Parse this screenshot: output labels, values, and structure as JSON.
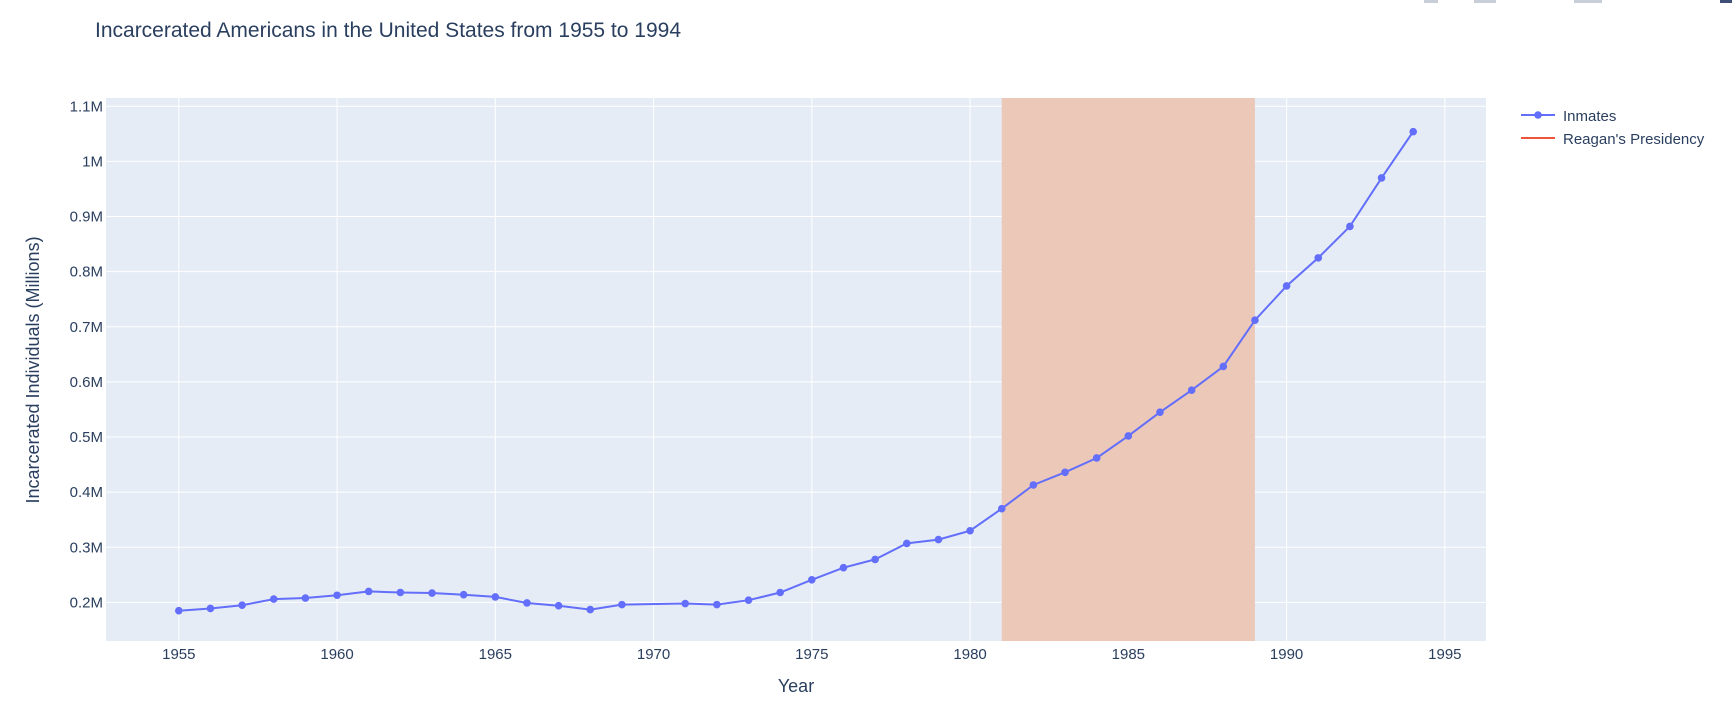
{
  "chart_data": {
    "type": "line",
    "title": "Incarcerated Americans in the United States from 1955 to 1994",
    "xlabel": "Year",
    "ylabel": "Incarcerated Individuals (Millions)",
    "xlim": [
      1952.7,
      1996.3
    ],
    "ylim": [
      0.13,
      1.115
    ],
    "x_ticks": [
      1955,
      1960,
      1965,
      1970,
      1975,
      1980,
      1985,
      1990,
      1995
    ],
    "x_tick_labels": [
      "1955",
      "1960",
      "1965",
      "1970",
      "1975",
      "1980",
      "1985",
      "1990",
      "1995"
    ],
    "y_ticks": [
      0.2,
      0.3,
      0.4,
      0.5,
      0.6,
      0.7,
      0.8,
      0.9,
      1.0,
      1.1
    ],
    "y_tick_labels": [
      "0.2M",
      "0.3M",
      "0.4M",
      "0.5M",
      "0.6M",
      "0.7M",
      "0.8M",
      "0.9M",
      "1M",
      "1.1M"
    ],
    "grid": true,
    "legend_position": "top-right",
    "series": [
      {
        "name": "Inmates",
        "color": "#636efa",
        "mode": "lines+markers",
        "x": [
          1955,
          1956,
          1957,
          1958,
          1959,
          1960,
          1961,
          1962,
          1963,
          1964,
          1965,
          1966,
          1967,
          1968,
          1969,
          1971,
          1972,
          1973,
          1974,
          1975,
          1976,
          1977,
          1978,
          1979,
          1980,
          1981,
          1982,
          1983,
          1984,
          1985,
          1986,
          1987,
          1988,
          1989,
          1990,
          1991,
          1992,
          1993,
          1994
        ],
        "y": [
          0.185,
          0.189,
          0.195,
          0.206,
          0.208,
          0.213,
          0.22,
          0.218,
          0.217,
          0.214,
          0.21,
          0.199,
          0.194,
          0.187,
          0.196,
          0.198,
          0.196,
          0.204,
          0.218,
          0.241,
          0.263,
          0.278,
          0.307,
          0.314,
          0.33,
          0.37,
          0.413,
          0.436,
          0.462,
          0.502,
          0.545,
          0.585,
          0.628,
          0.712,
          0.774,
          0.825,
          0.882,
          0.97,
          1.054
        ]
      }
    ],
    "shaded_region": {
      "name": "Reagan's Presidency",
      "x0": 1981,
      "x1": 1989,
      "color": "#ef553b",
      "fill": "#ecc8b9"
    }
  }
}
